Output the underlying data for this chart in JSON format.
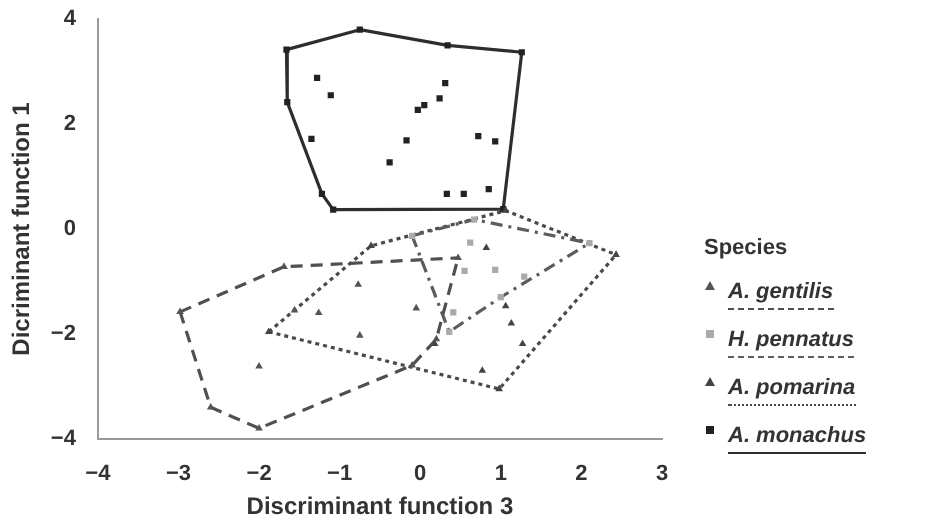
{
  "chart_data": {
    "type": "scatter",
    "xlabel": "Discriminant function 3",
    "ylabel": "Dicriminant function 1",
    "legend_title": "Species",
    "legend": "right",
    "xlim": [
      -4,
      3
    ],
    "xticks": [
      -4,
      -3,
      -2,
      -1,
      0,
      1,
      2,
      3
    ],
    "ylim": [
      -4,
      4
    ],
    "yticks": [
      -4,
      -2,
      0,
      2,
      4
    ],
    "grid": false,
    "series": [
      {
        "name": "A. gentilis",
        "color": "#555555",
        "marker": "triangle",
        "x": [
          -2.98,
          -1.69,
          0.47,
          0.2,
          -0.1,
          -2.0,
          -2.6,
          -0.77,
          -1.56,
          -1.26,
          -0.75,
          -2.0,
          -0.05
        ],
        "values": [
          -1.58,
          -0.72,
          -0.55,
          -2.1,
          -2.6,
          -3.8,
          -3.4,
          -1.06,
          -1.55,
          -1.6,
          -2.03,
          -2.62,
          -1.51
        ]
      },
      {
        "name": "H. pennatus",
        "color": "#aaaaaa",
        "marker": "square",
        "x": [
          -0.1,
          0.67,
          0.62,
          0.93,
          1.29,
          0.41,
          0.55,
          2.1,
          1.0,
          0.36
        ],
        "values": [
          -0.13,
          0.18,
          -0.26,
          -0.78,
          -0.91,
          -1.59,
          -0.8,
          -0.27,
          -1.3,
          -1.96
        ]
      },
      {
        "name": "A. pomarina",
        "color": "#444444",
        "marker": "triangle",
        "x": [
          -1.88,
          -0.61,
          1.06,
          2.43,
          0.98,
          0.77,
          1.27,
          1.13,
          1.06,
          0.18,
          0.82
        ],
        "values": [
          -1.96,
          -0.32,
          0.35,
          -0.49,
          -3.05,
          -2.7,
          -2.19,
          -1.8,
          -1.47,
          -2.19,
          -0.36
        ]
      },
      {
        "name": "A. monachus",
        "color": "#222222",
        "marker": "square",
        "x": [
          -1.66,
          -0.75,
          0.34,
          1.26,
          1.03,
          -1.08,
          -1.22,
          -1.65,
          -1.28,
          -1.11,
          0.31,
          0.24,
          0.05,
          -0.03,
          0.72,
          0.93,
          -0.17,
          -0.38,
          -1.35,
          0.33,
          0.54,
          0.85
        ],
        "values": [
          3.42,
          3.8,
          3.5,
          3.37,
          0.38,
          0.37,
          0.67,
          2.42,
          2.88,
          2.55,
          2.78,
          2.49,
          2.36,
          2.27,
          1.77,
          1.67,
          1.69,
          1.27,
          1.72,
          0.67,
          0.67,
          0.76
        ]
      },
      {
        "type": "line",
        "color": "#505050",
        "marker": "none",
        "line_style": "dashed",
        "x": [
          -2.98,
          -1.69,
          0.47
        ],
        "values": [
          -1.58,
          -0.72,
          -0.55
        ]
      },
      {
        "type": "line",
        "color": "#505050",
        "marker": "none",
        "line_style": "dashed",
        "x": [
          -2.98,
          -2.6,
          -2.0,
          -0.1,
          0.2,
          0.47
        ],
        "values": [
          -1.58,
          -3.4,
          -3.8,
          -2.6,
          -2.1,
          -0.55
        ]
      },
      {
        "type": "line",
        "color": "#5c5c5c",
        "marker": "none",
        "line_style": "dashdot",
        "x": [
          -0.1,
          0.67,
          2.1
        ],
        "values": [
          -0.13,
          0.18,
          -0.27
        ]
      },
      {
        "type": "line",
        "color": "#5c5c5c",
        "marker": "none",
        "line_style": "dashdot",
        "x": [
          -0.1,
          0.36,
          1.0,
          2.1
        ],
        "values": [
          -0.13,
          -1.96,
          -1.3,
          -0.27
        ]
      },
      {
        "type": "line",
        "color": "#4a4a4a",
        "marker": "none",
        "line_style": "dotted",
        "x": [
          -1.88,
          -0.61,
          1.06,
          2.43
        ],
        "values": [
          -1.96,
          -0.32,
          0.35,
          -0.49
        ]
      },
      {
        "type": "line",
        "color": "#4a4a4a",
        "marker": "none",
        "line_style": "dotted",
        "x": [
          -1.88,
          0.98,
          2.43
        ],
        "values": [
          -1.96,
          -3.05,
          -0.49
        ]
      },
      {
        "type": "line",
        "color": "#2e2e2e",
        "marker": "none",
        "line_style": "solid",
        "x": [
          -1.66,
          -0.75,
          0.34,
          1.26
        ],
        "values": [
          3.42,
          3.8,
          3.5,
          3.37
        ]
      },
      {
        "type": "line",
        "color": "#2e2e2e",
        "marker": "none",
        "line_style": "solid",
        "x": [
          -1.66,
          -1.65,
          -1.22,
          -1.08,
          1.03,
          1.26
        ],
        "values": [
          3.42,
          2.42,
          0.67,
          0.37,
          0.38,
          3.37
        ]
      }
    ]
  }
}
